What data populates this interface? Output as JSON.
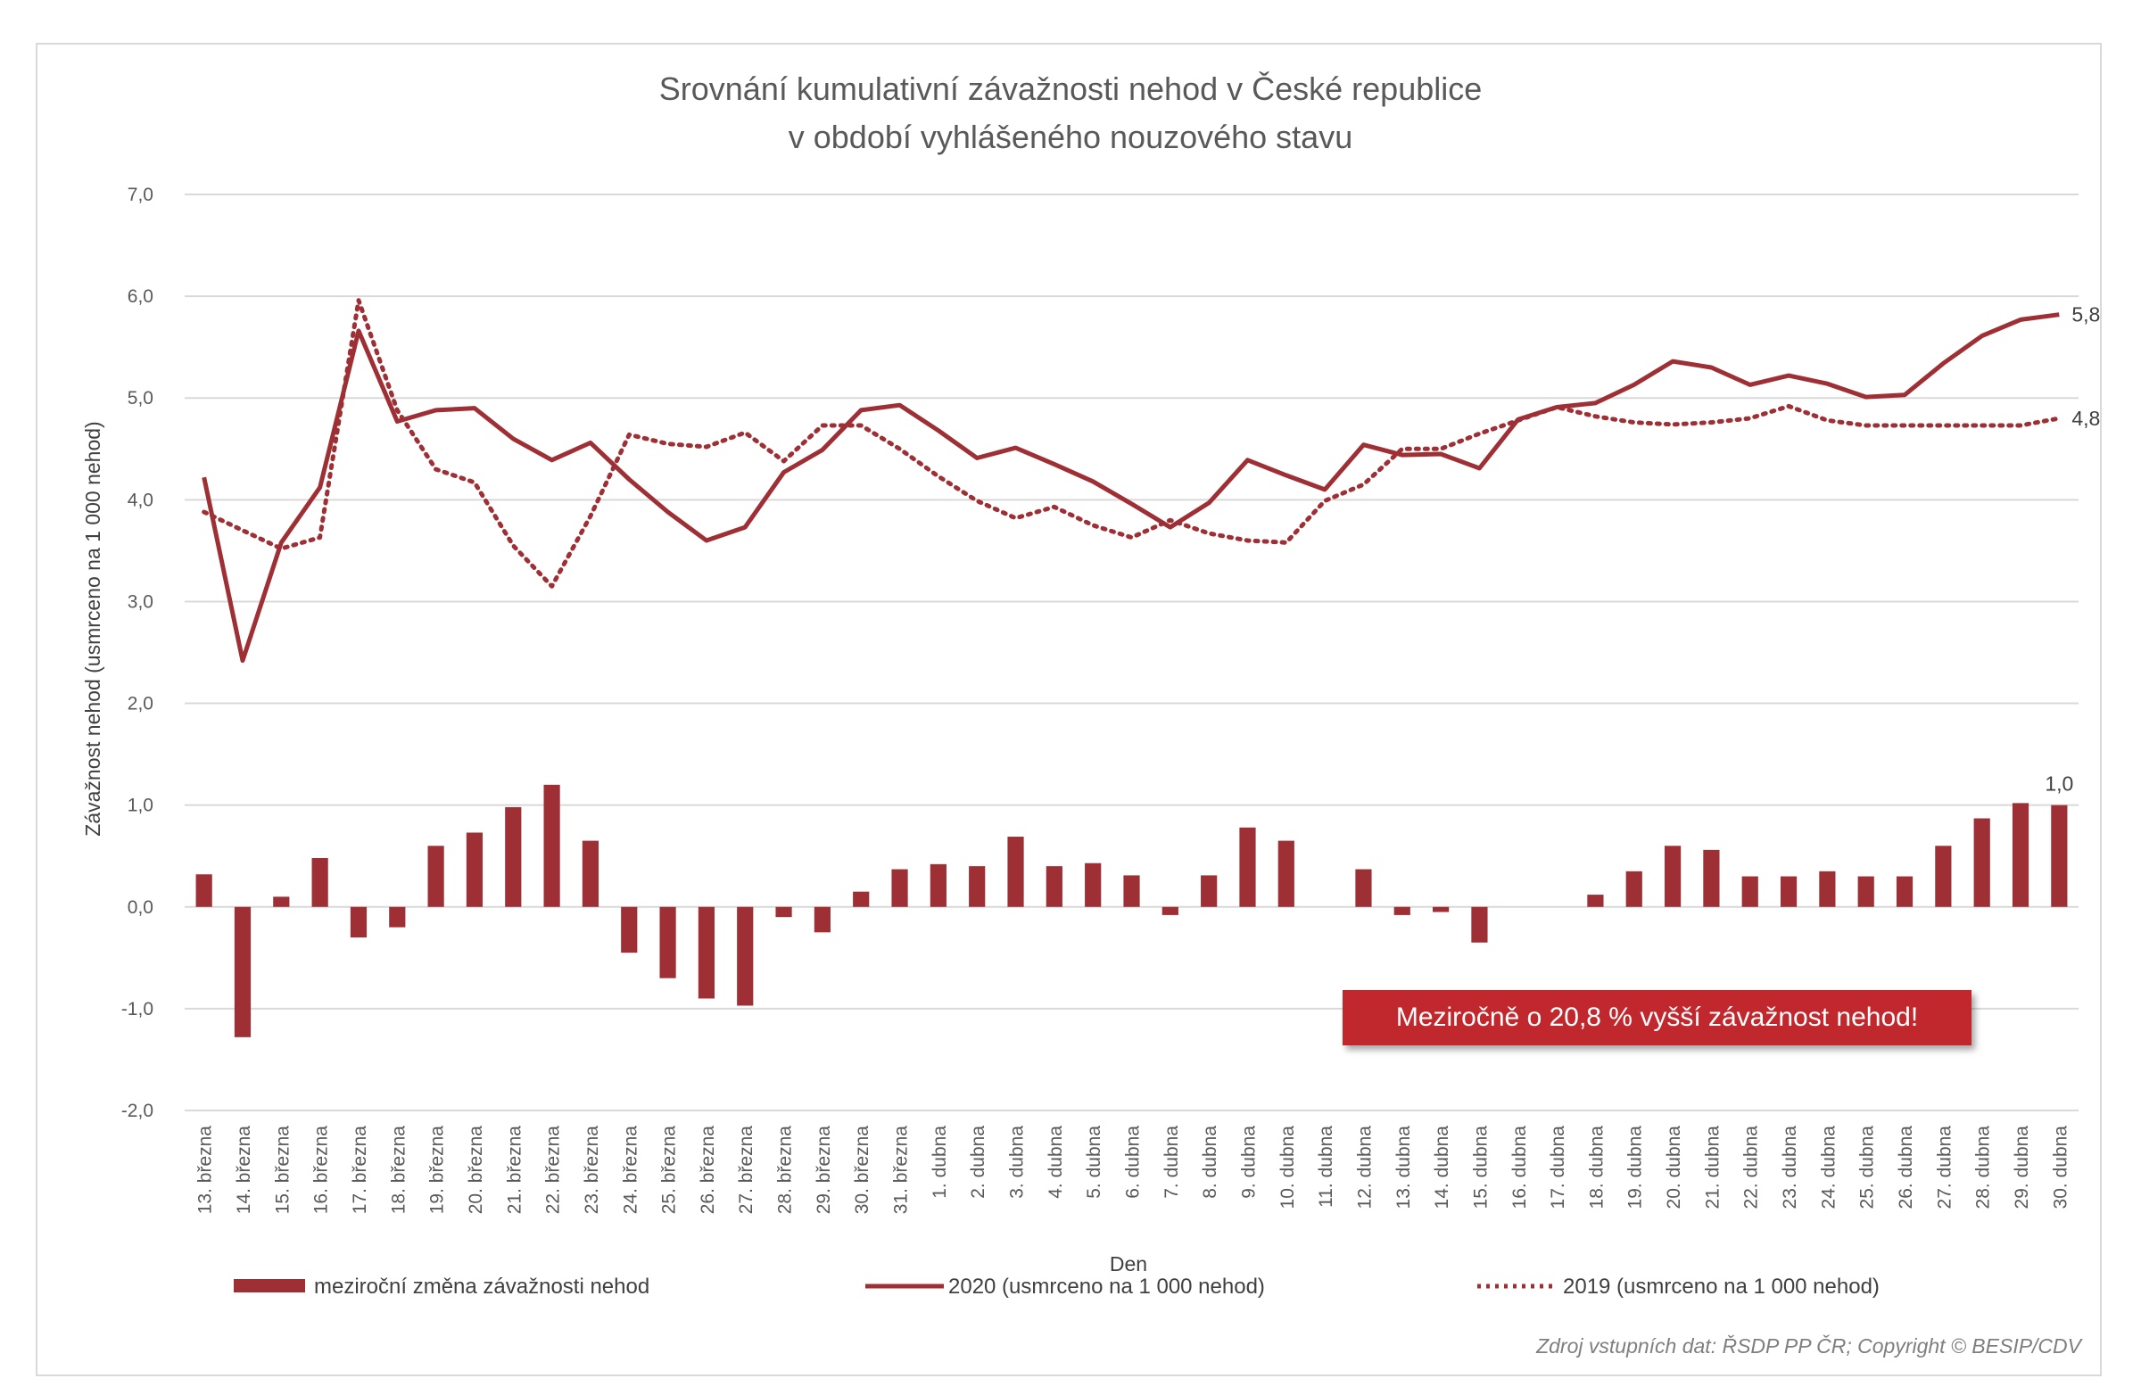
{
  "chart_data": {
    "type": "bar+line",
    "title_line1": "Srovnání kumulativní závažnosti nehod v České republice",
    "title_line2": "v období vyhlášeného nouzového stavu",
    "xlabel": "Den",
    "ylabel": "Závažnost nehod (usmrceno na 1 000 nehod)",
    "ylim": [
      -2.0,
      7.0
    ],
    "yticks": [
      "-2,0",
      "-1,0",
      "0,0",
      "1,0",
      "2,0",
      "3,0",
      "4,0",
      "5,0",
      "6,0",
      "7,0"
    ],
    "ytick_values": [
      -2,
      -1,
      0,
      1,
      2,
      3,
      4,
      5,
      6,
      7
    ],
    "categories": [
      "13. března",
      "14. března",
      "15. března",
      "16. března",
      "17. března",
      "18. března",
      "19. března",
      "20. března",
      "21. března",
      "22. března",
      "23. března",
      "24. března",
      "25. března",
      "26. března",
      "27. března",
      "28. března",
      "29. března",
      "30. března",
      "31. března",
      "1. dubna",
      "2. dubna",
      "3. dubna",
      "4. dubna",
      "5. dubna",
      "6. dubna",
      "7. dubna",
      "8. dubna",
      "9. dubna",
      "10. dubna",
      "11. dubna",
      "12. dubna",
      "13. dubna",
      "14. dubna",
      "15. dubna",
      "16. dubna",
      "17. dubna",
      "18. dubna",
      "19. dubna",
      "20. dubna",
      "21. dubna",
      "22. dubna",
      "23. dubna",
      "24. dubna",
      "25. dubna",
      "26. dubna",
      "27. dubna",
      "28. dubna",
      "29. dubna",
      "30. dubna"
    ],
    "series": [
      {
        "name": "meziroční změna závažnosti nehod",
        "type": "bar",
        "color": "#9e3035",
        "values": [
          0.32,
          -1.28,
          0.1,
          0.48,
          -0.3,
          -0.2,
          0.6,
          0.73,
          0.98,
          1.2,
          0.65,
          -0.45,
          -0.7,
          -0.9,
          -0.97,
          -0.1,
          -0.25,
          0.15,
          0.37,
          0.42,
          0.4,
          0.69,
          0.4,
          0.43,
          0.31,
          -0.08,
          0.31,
          0.78,
          0.65,
          0.0,
          0.37,
          -0.08,
          -0.05,
          -0.35,
          0.0,
          0.0,
          0.12,
          0.35,
          0.6,
          0.56,
          0.3,
          0.3,
          0.35,
          0.3,
          0.3,
          0.6,
          0.87,
          1.02,
          1.0
        ]
      },
      {
        "name": "2020 (usmrceno na 1 000 nehod)",
        "type": "line",
        "color": "#9e3035",
        "values": [
          4.22,
          2.42,
          3.58,
          4.12,
          5.66,
          4.77,
          4.88,
          4.9,
          4.6,
          4.39,
          4.56,
          4.2,
          3.88,
          3.6,
          3.73,
          4.27,
          4.49,
          4.88,
          4.93,
          4.68,
          4.41,
          4.51,
          4.35,
          4.18,
          3.96,
          3.73,
          3.97,
          4.39,
          4.24,
          4.1,
          4.54,
          4.44,
          4.45,
          4.31,
          4.79,
          4.91,
          4.95,
          5.13,
          5.36,
          5.3,
          5.13,
          5.22,
          5.14,
          5.01,
          5.03,
          5.34,
          5.61,
          5.77,
          5.82
        ]
      },
      {
        "name": "2019 (usmrceno na 1 000 nehod)",
        "type": "line",
        "style": "dotted",
        "color": "#9e3035",
        "values": [
          3.88,
          3.7,
          3.52,
          3.63,
          5.96,
          4.88,
          4.3,
          4.17,
          3.55,
          3.15,
          3.84,
          4.64,
          4.55,
          4.52,
          4.66,
          4.38,
          4.73,
          4.73,
          4.5,
          4.23,
          3.99,
          3.82,
          3.93,
          3.75,
          3.63,
          3.8,
          3.67,
          3.6,
          3.58,
          3.99,
          4.15,
          4.5,
          4.5,
          4.65,
          4.78,
          4.91,
          4.82,
          4.76,
          4.74,
          4.76,
          4.8,
          4.92,
          4.78,
          4.73,
          4.73,
          4.73,
          4.73,
          4.73,
          4.8
        ]
      }
    ],
    "data_labels": [
      {
        "series": "2020 (usmrceno na 1 000 nehod)",
        "index": 48,
        "text": "5,8"
      },
      {
        "series": "2019 (usmrceno na 1 000 nehod)",
        "index": 48,
        "text": "4,8"
      },
      {
        "series": "meziroční změna závažnosti nehod",
        "index": 48,
        "text": "1,0"
      }
    ],
    "legend": [
      "meziroční změna závažnosti nehod",
      "2020 (usmrceno na 1 000 nehod)",
      "2019 (usmrceno na 1 000 nehod)"
    ],
    "legend_position": "bottom",
    "grid": true,
    "annotation": "Meziročně o 20,8 % vyšší závažnost nehod!",
    "source": "Zdroj vstupních dat: ŘSDP PP ČR; Copyright © BESIP/CDV"
  }
}
